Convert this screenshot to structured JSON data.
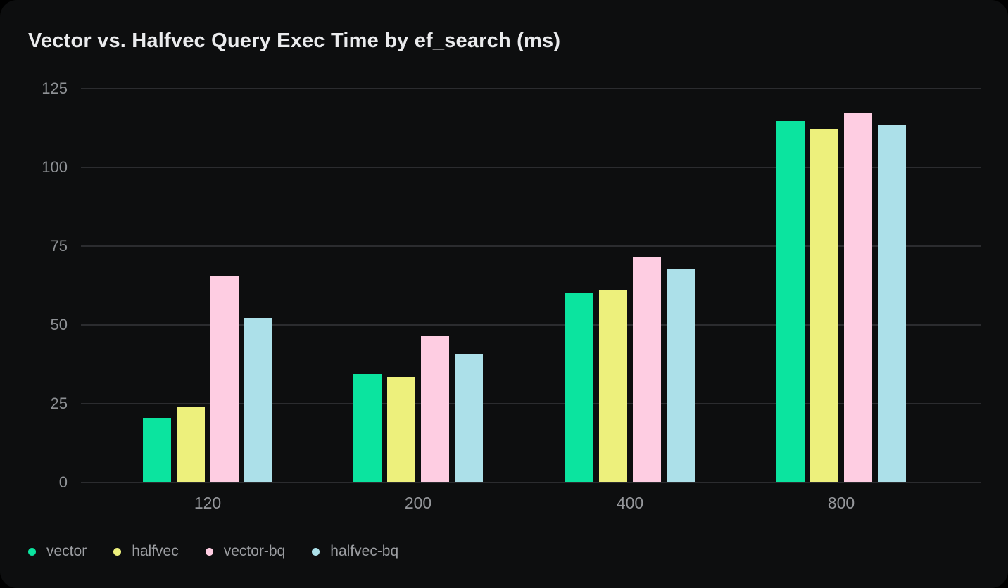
{
  "chart_data": {
    "type": "bar",
    "title": "Vector vs. Halfvec Query Exec Time by ef_search (ms)",
    "categories": [
      "120",
      "200",
      "400",
      "800"
    ],
    "series": [
      {
        "name": "vector",
        "color": "#0be49f",
        "values": [
          20.3,
          34.4,
          60.3,
          114.8
        ]
      },
      {
        "name": "halfvec",
        "color": "#edf07c",
        "values": [
          23.8,
          33.5,
          61.2,
          112.2
        ]
      },
      {
        "name": "vector-bq",
        "color": "#fecde2",
        "values": [
          65.7,
          46.4,
          71.4,
          117.1
        ]
      },
      {
        "name": "halfvec-bq",
        "color": "#ace0e9",
        "values": [
          52.3,
          40.6,
          67.9,
          113.5
        ]
      }
    ],
    "xlabel": "",
    "ylabel": "",
    "ylim": [
      0,
      125
    ],
    "yticks": [
      0,
      25,
      50,
      75,
      100,
      125
    ],
    "grid": true,
    "legend_position": "bottom-left"
  },
  "colors": {
    "card_background": "#0d0e0f",
    "page_background": "#000000",
    "gridline": "#2b2c2f",
    "title_text": "#eaebed",
    "axis_text": "#95979b",
    "legend_text": "#9c9ea2"
  }
}
